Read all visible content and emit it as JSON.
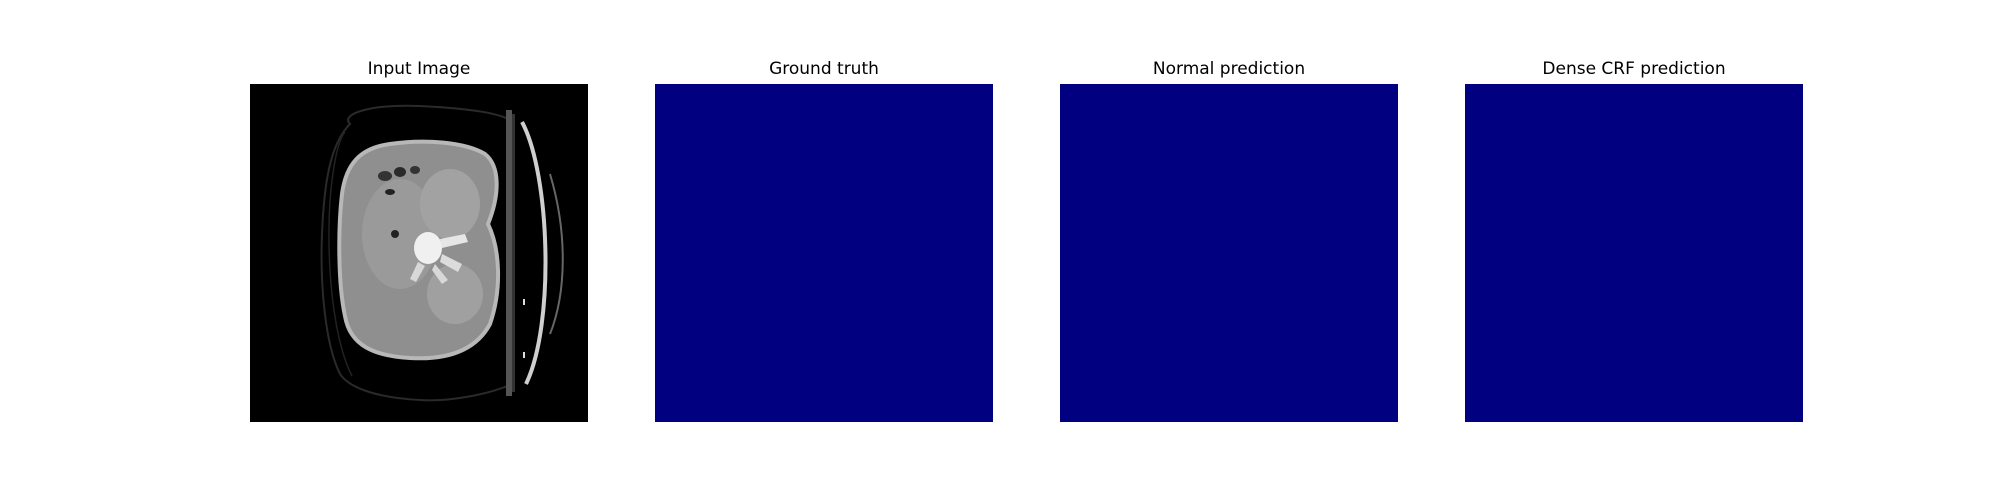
{
  "figure": {
    "panels": [
      {
        "title": "Input Image",
        "kind": "ct-scan"
      },
      {
        "title": "Ground truth",
        "kind": "mask"
      },
      {
        "title": "Normal prediction",
        "kind": "mask"
      },
      {
        "title": "Dense CRF prediction",
        "kind": "mask"
      }
    ],
    "colors": {
      "mask_fill": "#000080",
      "background": "#ffffff",
      "scan_background": "#000000"
    }
  }
}
